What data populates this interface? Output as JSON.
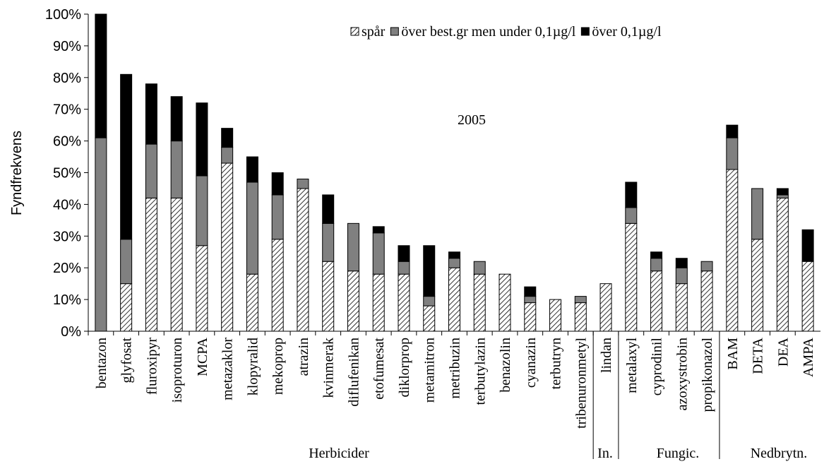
{
  "chart_data": {
    "type": "stacked_bar",
    "annotation": "2005",
    "ylabel": "Fyndfrekvens",
    "categories": [
      "bentazon",
      "glyfosat",
      "fluroxipyr",
      "isoproturon",
      "MCPA",
      "metazaklor",
      "klopyralid",
      "mekoprop",
      "atrazin",
      "kvinmerak",
      "diflufenikan",
      "etofumesat",
      "diklorprop",
      "metamitron",
      "metribuzin",
      "terbutylazin",
      "benazolin",
      "cyanazin",
      "terbutryn",
      "tribenuronmetyl",
      "lindan",
      "metalaxyl",
      "cyprodinil",
      "azoxystrobin",
      "propikonazol",
      "BAM",
      "DETA",
      "DEA",
      "AMPA"
    ],
    "groups": [
      "Herbicider",
      "In.",
      "Fungic.",
      "Nedbrytn."
    ],
    "series": [
      {
        "name": "spår",
        "color": "#000000",
        "hatch": true,
        "values": [
          0,
          15,
          42,
          42,
          27,
          53,
          18,
          29,
          45,
          22,
          19,
          18,
          18,
          8,
          20,
          18,
          18,
          9,
          10,
          9,
          15,
          34,
          19,
          15,
          19,
          51,
          29,
          42,
          22
        ]
      },
      {
        "name": "över best.gr men under 0,1µg/l",
        "color": "#808080",
        "hatch": false,
        "values": [
          61,
          14,
          17,
          18,
          22,
          5,
          29,
          14,
          3,
          12,
          15,
          13,
          4,
          3,
          3,
          4,
          0,
          2,
          0,
          2,
          0,
          5,
          4,
          5,
          3,
          10,
          16,
          1,
          0
        ]
      },
      {
        "name": "över 0,1µg/l",
        "color": "#000000",
        "hatch": false,
        "values": [
          39,
          52,
          19,
          14,
          23,
          6,
          8,
          7,
          0,
          9,
          0,
          2,
          5,
          16,
          2,
          0,
          0,
          3,
          0,
          0,
          0,
          8,
          2,
          3,
          0,
          4,
          0,
          2,
          10
        ]
      }
    ],
    "ylim": [
      0,
      100
    ],
    "yticks": [
      {
        "value": 0,
        "label": "0%"
      },
      {
        "value": 10,
        "label": "10%"
      },
      {
        "value": 20,
        "label": "20%"
      },
      {
        "value": 30,
        "label": "30%"
      },
      {
        "value": 40,
        "label": "40%"
      },
      {
        "value": 50,
        "label": "50%"
      },
      {
        "value": 60,
        "label": "60%"
      },
      {
        "value": 70,
        "label": "70%"
      },
      {
        "value": 80,
        "label": "80%"
      },
      {
        "value": 90,
        "label": "90%"
      },
      {
        "value": 100,
        "label": "100%"
      }
    ],
    "legend": "upper right"
  }
}
